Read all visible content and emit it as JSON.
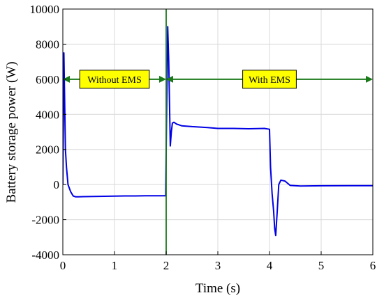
{
  "chart_data": {
    "type": "line",
    "title": "",
    "xlabel": "Time (s)",
    "ylabel": "Battery storage power (W)",
    "xlim": [
      0,
      6
    ],
    "ylim": [
      -4000,
      10000
    ],
    "xticks": [
      "0",
      "1",
      "2",
      "3",
      "4",
      "5",
      "6"
    ],
    "yticks": [
      "-4000",
      "-2000",
      "0",
      "2000",
      "4000",
      "6000",
      "8000",
      "10000"
    ],
    "grid": true,
    "series": [
      {
        "color": "#0000e6",
        "x": [
          0,
          0.02,
          0.05,
          0.07,
          0.1,
          0.15,
          0.2,
          0.25,
          0.3,
          0.4,
          0.6,
          0.8,
          1.0,
          1.2,
          1.4,
          1.6,
          1.8,
          1.99,
          2.0,
          2.03,
          2.05,
          2.08,
          2.1,
          2.12,
          2.15,
          2.2,
          2.3,
          2.5,
          2.8,
          3.0,
          3.3,
          3.6,
          3.9,
          4.0,
          4.02,
          4.05,
          4.08,
          4.1,
          4.12,
          4.15,
          4.18,
          4.22,
          4.3,
          4.4,
          4.6,
          5.0,
          5.5,
          6.0
        ],
        "y": [
          0,
          7500,
          2000,
          1000,
          0,
          -400,
          -650,
          -700,
          -700,
          -690,
          -680,
          -670,
          -660,
          -650,
          -650,
          -640,
          -640,
          -640,
          2000,
          9000,
          7000,
          2200,
          3000,
          3500,
          3550,
          3450,
          3350,
          3300,
          3250,
          3200,
          3200,
          3180,
          3200,
          3150,
          1000,
          -500,
          -1500,
          -2500,
          -2900,
          -1500,
          0,
          250,
          200,
          -50,
          -80,
          -70,
          -60,
          -60
        ]
      },
      {
        "color": "#1a7a1a",
        "x": [
          2.0,
          2.0
        ],
        "y": [
          -4000,
          10000
        ]
      }
    ],
    "annotations": [
      {
        "text": "Without EMS",
        "x_range": [
          0,
          2
        ],
        "y": 6000
      },
      {
        "text": "With EMS",
        "x_range": [
          2,
          6
        ],
        "y": 6000
      }
    ],
    "colors": {
      "line": "#0000e6",
      "marker_line": "#1a7a1a",
      "arrow": "#1a7a1a",
      "label_box": "#ffff00",
      "grid": "#d9d9d9"
    }
  }
}
